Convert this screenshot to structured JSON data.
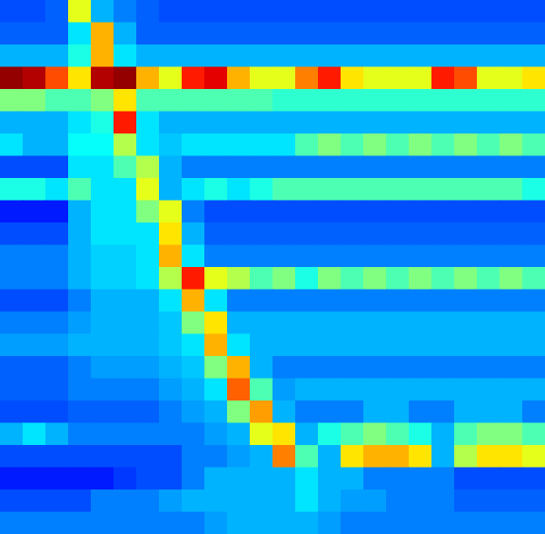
{
  "chart_data": {
    "type": "heatmap",
    "color": "jet",
    "tick_labels": false,
    "zlim": [
      0,
      1
    ],
    "cells": [
      [
        0.2,
        0.2,
        0.22,
        0.6,
        0.3,
        0.25,
        0.22,
        0.2,
        0.2,
        0.2,
        0.2,
        0.2,
        0.2,
        0.2,
        0.2,
        0.2,
        0.2,
        0.2,
        0.2,
        0.2,
        0.2,
        0.2,
        0.2,
        0.2
      ],
      [
        0.22,
        0.22,
        0.22,
        0.35,
        0.7,
        0.3,
        0.22,
        0.22,
        0.22,
        0.22,
        0.22,
        0.22,
        0.22,
        0.22,
        0.22,
        0.22,
        0.22,
        0.22,
        0.22,
        0.22,
        0.22,
        0.22,
        0.22,
        0.22
      ],
      [
        0.3,
        0.3,
        0.3,
        0.4,
        0.7,
        0.35,
        0.3,
        0.3,
        0.3,
        0.3,
        0.3,
        0.3,
        0.3,
        0.3,
        0.3,
        0.3,
        0.3,
        0.3,
        0.3,
        0.3,
        0.3,
        0.3,
        0.3,
        0.3
      ],
      [
        0.98,
        0.95,
        0.8,
        0.65,
        0.95,
        0.98,
        0.7,
        0.6,
        0.85,
        0.9,
        0.7,
        0.6,
        0.6,
        0.75,
        0.85,
        0.65,
        0.6,
        0.6,
        0.6,
        0.85,
        0.8,
        0.6,
        0.6,
        0.65
      ],
      [
        0.5,
        0.5,
        0.45,
        0.45,
        0.5,
        0.65,
        0.45,
        0.45,
        0.45,
        0.45,
        0.45,
        0.45,
        0.42,
        0.42,
        0.42,
        0.42,
        0.42,
        0.42,
        0.42,
        0.42,
        0.42,
        0.42,
        0.42,
        0.42
      ],
      [
        0.3,
        0.3,
        0.3,
        0.35,
        0.4,
        0.85,
        0.35,
        0.3,
        0.3,
        0.3,
        0.3,
        0.3,
        0.3,
        0.3,
        0.3,
        0.3,
        0.3,
        0.3,
        0.3,
        0.3,
        0.3,
        0.3,
        0.3,
        0.3
      ],
      [
        0.35,
        0.3,
        0.3,
        0.38,
        0.38,
        0.55,
        0.35,
        0.32,
        0.35,
        0.35,
        0.35,
        0.35,
        0.35,
        0.45,
        0.5,
        0.45,
        0.5,
        0.45,
        0.5,
        0.45,
        0.5,
        0.45,
        0.5,
        0.45
      ],
      [
        0.2,
        0.2,
        0.2,
        0.35,
        0.35,
        0.45,
        0.55,
        0.3,
        0.25,
        0.25,
        0.25,
        0.25,
        0.25,
        0.25,
        0.25,
        0.25,
        0.25,
        0.25,
        0.25,
        0.25,
        0.25,
        0.25,
        0.25,
        0.25
      ],
      [
        0.4,
        0.4,
        0.35,
        0.45,
        0.35,
        0.35,
        0.6,
        0.3,
        0.35,
        0.4,
        0.35,
        0.4,
        0.45,
        0.45,
        0.45,
        0.45,
        0.45,
        0.45,
        0.45,
        0.45,
        0.45,
        0.45,
        0.45,
        0.4
      ],
      [
        0.15,
        0.15,
        0.15,
        0.3,
        0.35,
        0.35,
        0.5,
        0.6,
        0.25,
        0.2,
        0.2,
        0.2,
        0.2,
        0.2,
        0.2,
        0.2,
        0.2,
        0.2,
        0.2,
        0.2,
        0.2,
        0.2,
        0.2,
        0.2
      ],
      [
        0.2,
        0.2,
        0.2,
        0.3,
        0.35,
        0.35,
        0.35,
        0.65,
        0.3,
        0.22,
        0.22,
        0.22,
        0.22,
        0.22,
        0.22,
        0.22,
        0.22,
        0.22,
        0.22,
        0.22,
        0.22,
        0.22,
        0.22,
        0.22
      ],
      [
        0.25,
        0.25,
        0.25,
        0.3,
        0.33,
        0.33,
        0.35,
        0.7,
        0.35,
        0.25,
        0.25,
        0.25,
        0.25,
        0.25,
        0.25,
        0.25,
        0.25,
        0.25,
        0.25,
        0.25,
        0.25,
        0.25,
        0.25,
        0.25
      ],
      [
        0.25,
        0.25,
        0.25,
        0.3,
        0.33,
        0.33,
        0.35,
        0.55,
        0.85,
        0.6,
        0.55,
        0.45,
        0.5,
        0.4,
        0.5,
        0.45,
        0.5,
        0.45,
        0.5,
        0.45,
        0.5,
        0.45,
        0.5,
        0.45
      ],
      [
        0.2,
        0.2,
        0.2,
        0.25,
        0.3,
        0.3,
        0.3,
        0.35,
        0.7,
        0.35,
        0.25,
        0.25,
        0.25,
        0.25,
        0.25,
        0.25,
        0.25,
        0.25,
        0.25,
        0.25,
        0.25,
        0.25,
        0.25,
        0.25
      ],
      [
        0.25,
        0.25,
        0.25,
        0.28,
        0.3,
        0.3,
        0.3,
        0.32,
        0.5,
        0.65,
        0.3,
        0.3,
        0.3,
        0.3,
        0.3,
        0.3,
        0.3,
        0.3,
        0.3,
        0.3,
        0.3,
        0.3,
        0.3,
        0.3
      ],
      [
        0.28,
        0.28,
        0.28,
        0.3,
        0.3,
        0.3,
        0.3,
        0.32,
        0.35,
        0.7,
        0.35,
        0.3,
        0.3,
        0.3,
        0.3,
        0.3,
        0.3,
        0.3,
        0.3,
        0.3,
        0.3,
        0.3,
        0.3,
        0.3
      ],
      [
        0.22,
        0.22,
        0.22,
        0.25,
        0.28,
        0.28,
        0.28,
        0.3,
        0.32,
        0.5,
        0.7,
        0.3,
        0.25,
        0.25,
        0.25,
        0.25,
        0.25,
        0.25,
        0.25,
        0.25,
        0.25,
        0.25,
        0.25,
        0.25
      ],
      [
        0.22,
        0.22,
        0.22,
        0.25,
        0.25,
        0.25,
        0.25,
        0.28,
        0.3,
        0.35,
        0.78,
        0.45,
        0.28,
        0.3,
        0.3,
        0.3,
        0.3,
        0.3,
        0.3,
        0.3,
        0.3,
        0.3,
        0.3,
        0.3
      ],
      [
        0.2,
        0.2,
        0.2,
        0.22,
        0.22,
        0.22,
        0.22,
        0.25,
        0.28,
        0.3,
        0.5,
        0.72,
        0.3,
        0.25,
        0.25,
        0.25,
        0.3,
        0.3,
        0.25,
        0.25,
        0.3,
        0.3,
        0.3,
        0.25
      ],
      [
        0.3,
        0.35,
        0.3,
        0.25,
        0.25,
        0.25,
        0.25,
        0.25,
        0.25,
        0.28,
        0.3,
        0.6,
        0.65,
        0.3,
        0.4,
        0.45,
        0.5,
        0.45,
        0.4,
        0.3,
        0.45,
        0.5,
        0.5,
        0.45
      ],
      [
        0.2,
        0.2,
        0.2,
        0.2,
        0.2,
        0.2,
        0.2,
        0.2,
        0.25,
        0.25,
        0.28,
        0.3,
        0.75,
        0.45,
        0.3,
        0.65,
        0.7,
        0.7,
        0.65,
        0.3,
        0.55,
        0.65,
        0.65,
        0.6
      ],
      [
        0.15,
        0.15,
        0.15,
        0.15,
        0.15,
        0.18,
        0.2,
        0.2,
        0.25,
        0.3,
        0.3,
        0.3,
        0.3,
        0.35,
        0.3,
        0.3,
        0.25,
        0.25,
        0.25,
        0.25,
        0.2,
        0.2,
        0.2,
        0.2
      ],
      [
        0.2,
        0.2,
        0.2,
        0.2,
        0.25,
        0.25,
        0.25,
        0.28,
        0.3,
        0.3,
        0.3,
        0.3,
        0.3,
        0.35,
        0.3,
        0.28,
        0.28,
        0.25,
        0.25,
        0.25,
        0.22,
        0.22,
        0.22,
        0.22
      ],
      [
        0.25,
        0.25,
        0.25,
        0.25,
        0.25,
        0.25,
        0.25,
        0.25,
        0.25,
        0.28,
        0.3,
        0.3,
        0.3,
        0.3,
        0.28,
        0.25,
        0.25,
        0.25,
        0.25,
        0.25,
        0.25,
        0.25,
        0.25,
        0.25
      ]
    ]
  }
}
